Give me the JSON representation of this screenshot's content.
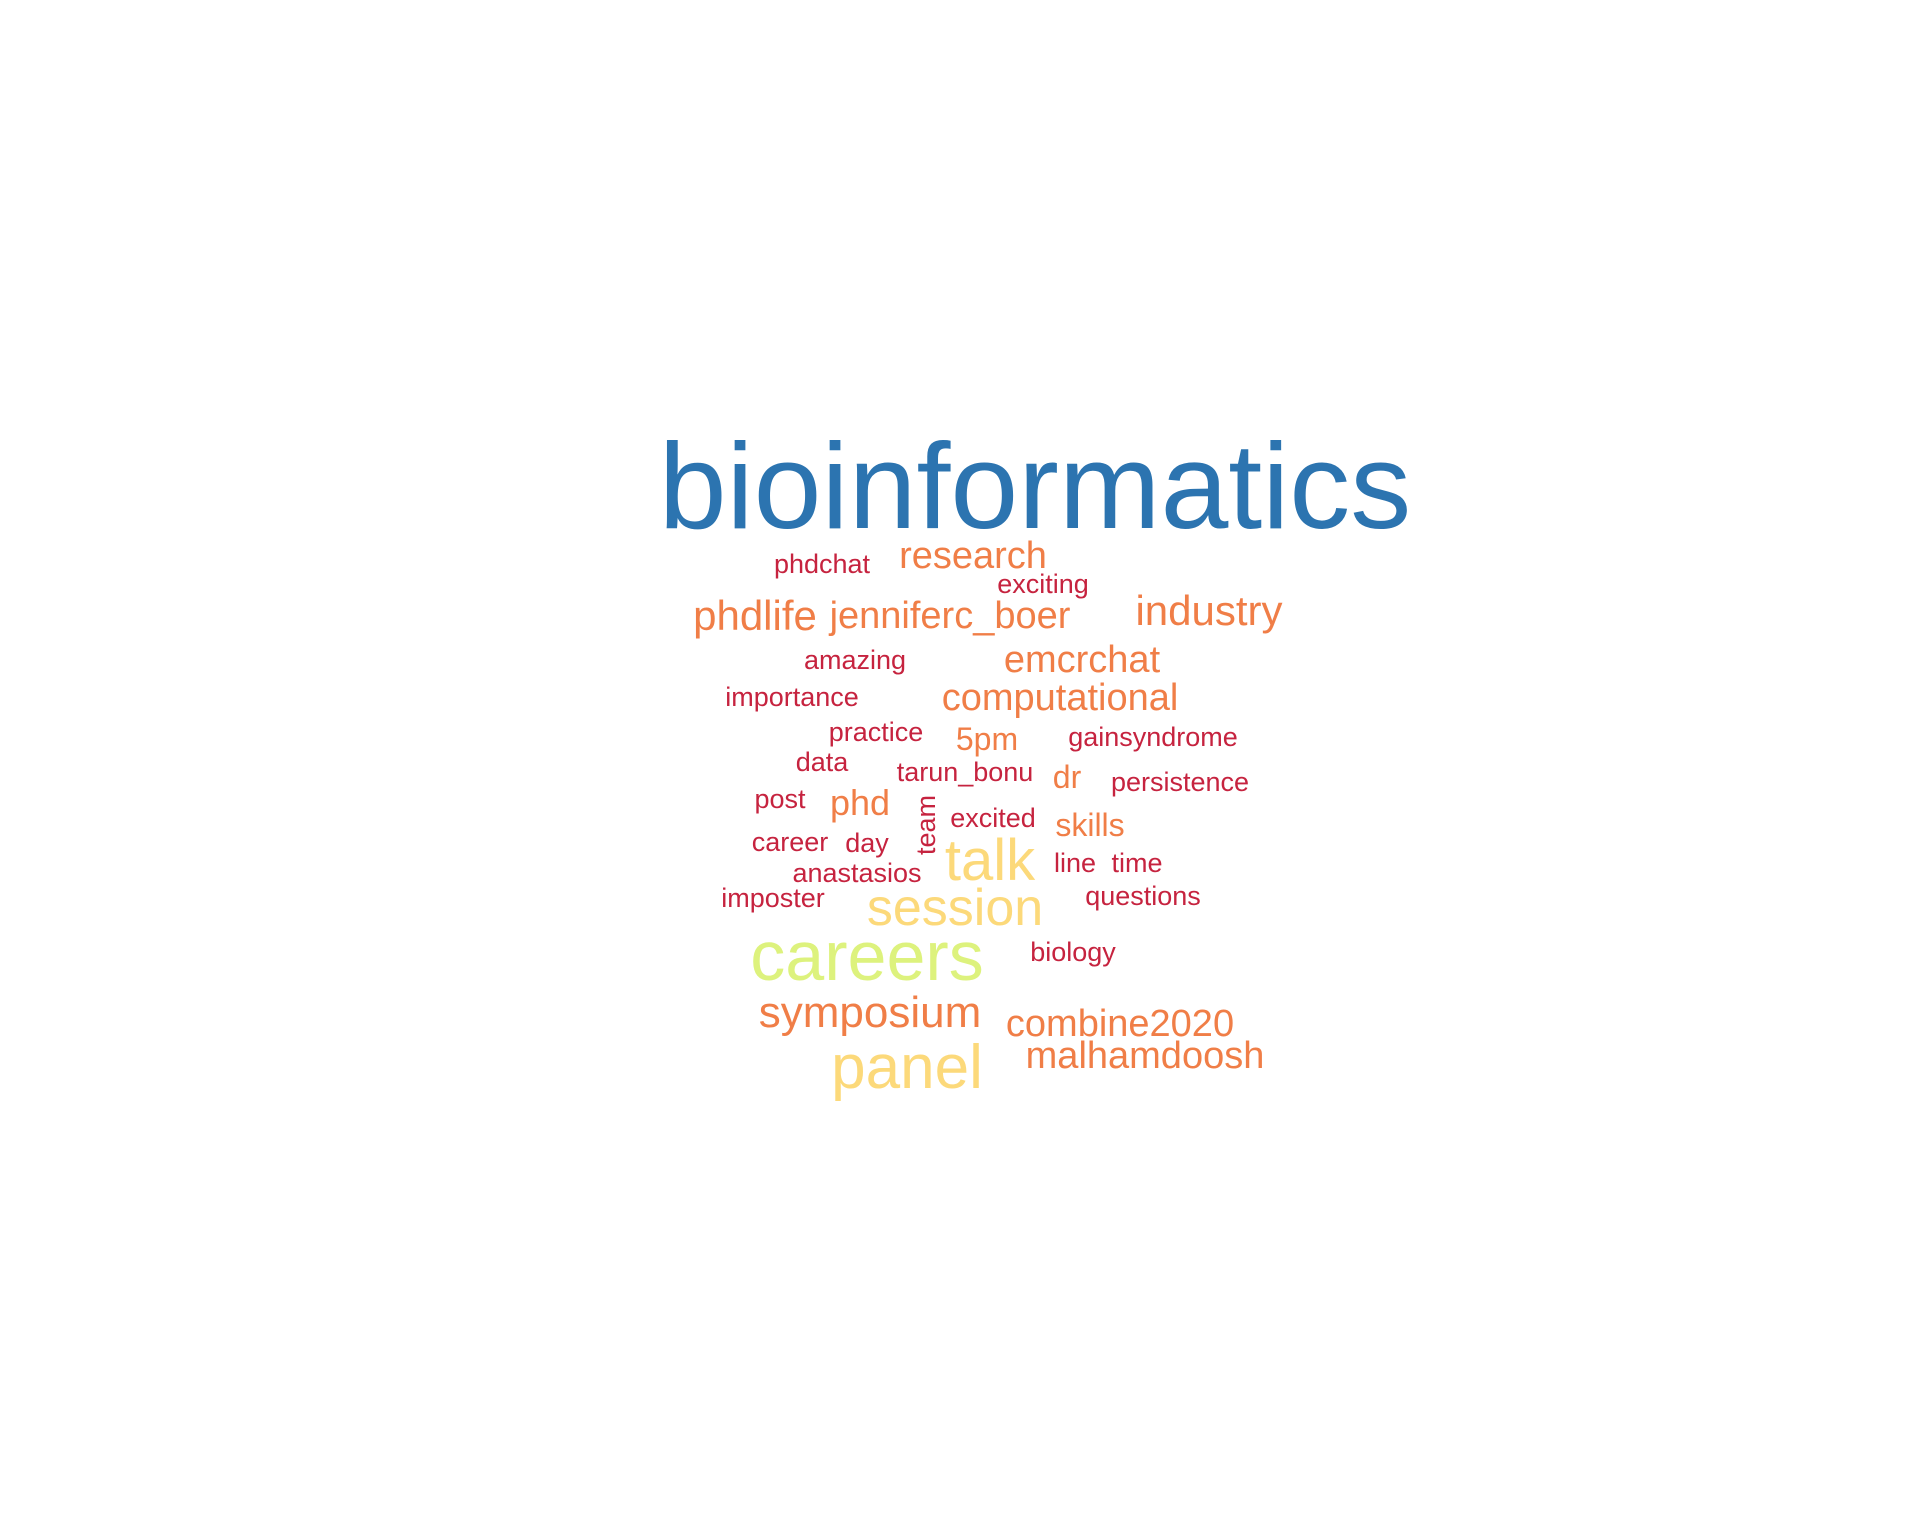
{
  "wordcloud": {
    "palette": {
      "blue": "#2C74B0",
      "lime": "#DDF27D",
      "yellow": "#FCD97A",
      "orange": "#F07E47",
      "red": "#C6233F"
    },
    "words": [
      {
        "text": "bioinformatics",
        "color": "blue"
      },
      {
        "text": "careers",
        "color": "lime"
      },
      {
        "text": "panel",
        "color": "yellow"
      },
      {
        "text": "talk",
        "color": "yellow"
      },
      {
        "text": "session",
        "color": "yellow"
      },
      {
        "text": "symposium",
        "color": "orange"
      },
      {
        "text": "industry",
        "color": "orange"
      },
      {
        "text": "phdlife",
        "color": "orange"
      },
      {
        "text": "jenniferc_boer",
        "color": "orange"
      },
      {
        "text": "research",
        "color": "orange"
      },
      {
        "text": "emcrchat",
        "color": "orange"
      },
      {
        "text": "computational",
        "color": "orange"
      },
      {
        "text": "combine2020",
        "color": "orange"
      },
      {
        "text": "malhamdoosh",
        "color": "orange"
      },
      {
        "text": "phd",
        "color": "orange"
      },
      {
        "text": "5pm",
        "color": "orange"
      },
      {
        "text": "dr",
        "color": "orange"
      },
      {
        "text": "skills",
        "color": "orange"
      },
      {
        "text": "phdchat",
        "color": "red"
      },
      {
        "text": "exciting",
        "color": "red"
      },
      {
        "text": "amazing",
        "color": "red"
      },
      {
        "text": "importance",
        "color": "red"
      },
      {
        "text": "practice",
        "color": "red"
      },
      {
        "text": "gainsyndrome",
        "color": "red"
      },
      {
        "text": "data",
        "color": "red"
      },
      {
        "text": "tarun_bonu",
        "color": "red"
      },
      {
        "text": "persistence",
        "color": "red"
      },
      {
        "text": "post",
        "color": "red"
      },
      {
        "text": "excited",
        "color": "red"
      },
      {
        "text": "team",
        "color": "red"
      },
      {
        "text": "career",
        "color": "red"
      },
      {
        "text": "day",
        "color": "red"
      },
      {
        "text": "line",
        "color": "red"
      },
      {
        "text": "time",
        "color": "red"
      },
      {
        "text": "anastasios",
        "color": "red"
      },
      {
        "text": "imposter",
        "color": "red"
      },
      {
        "text": "questions",
        "color": "red"
      },
      {
        "text": "biology",
        "color": "red"
      }
    ]
  }
}
